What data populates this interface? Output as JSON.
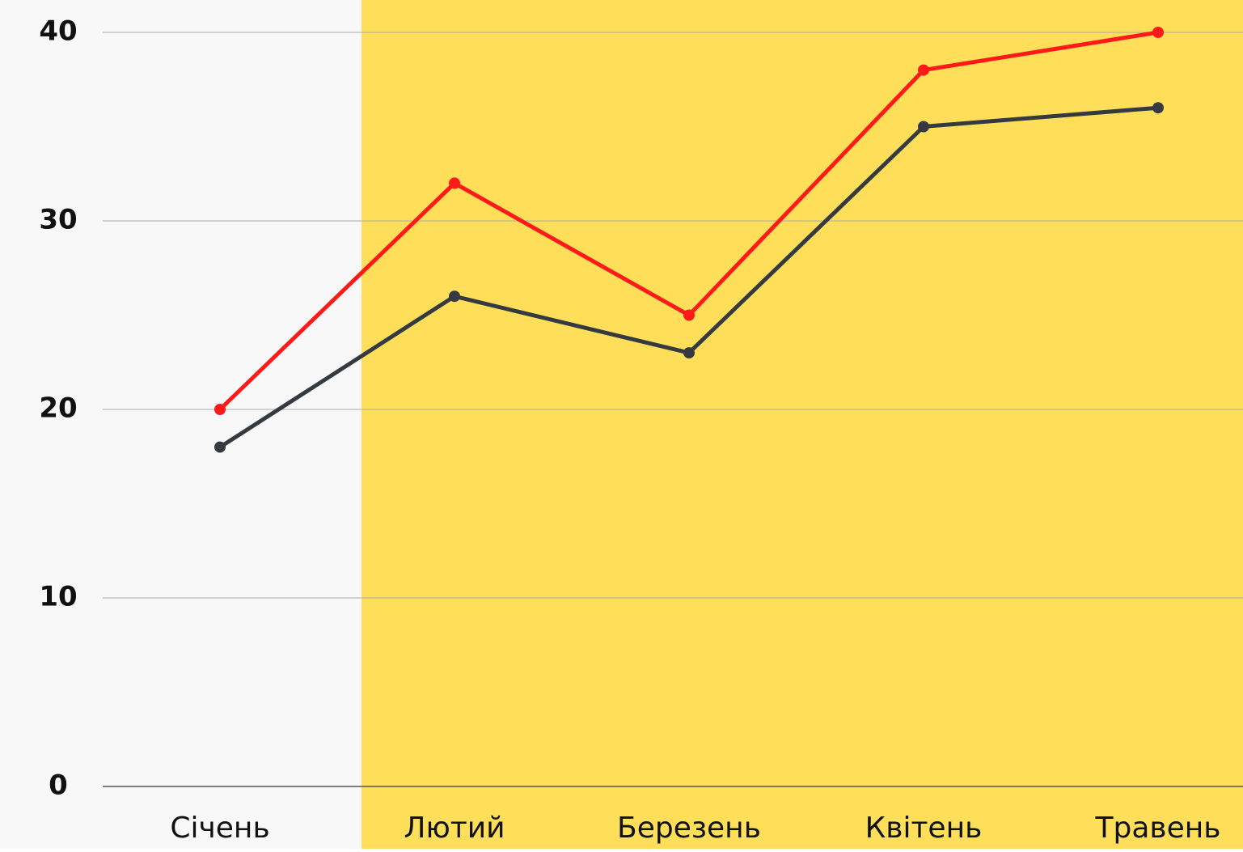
{
  "chart_data": {
    "type": "line",
    "categories": [
      "Січень",
      "Лютий",
      "Березень",
      "Квітень",
      "Травень"
    ],
    "series": [
      {
        "color": "#ff1a1a",
        "values": [
          20,
          32,
          25,
          38,
          40
        ]
      },
      {
        "color": "#343a40",
        "values": [
          18,
          26,
          23,
          35,
          36
        ]
      }
    ],
    "ylim": [
      0,
      40
    ],
    "yticks": [
      0,
      10,
      20,
      30,
      40
    ],
    "grid": true
  }
}
